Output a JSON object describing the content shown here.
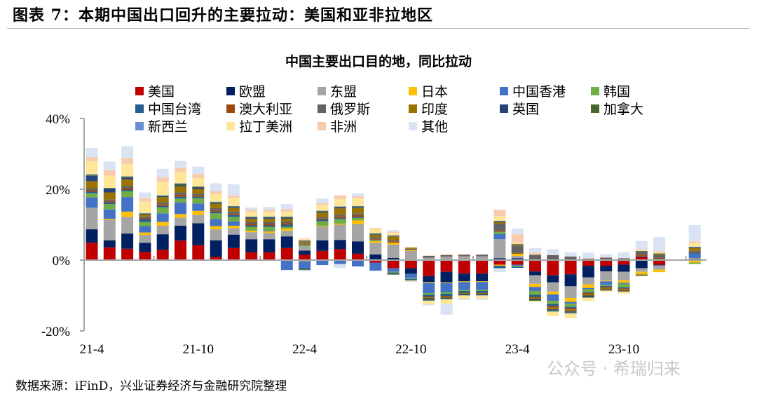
{
  "figure_title": "图表 7：本期中国出口回升的主要拉动：美国和亚非拉地区",
  "source_note": "数据来源：iFinD，兴业证券经济与金融研究院整理",
  "watermark": "公众号 · 希瑞归来",
  "chart_data": {
    "type": "bar",
    "stacked": true,
    "title": "中国主要出口目的地，同比拉动",
    "xlabel": "",
    "ylabel": "",
    "ylim": [
      -20,
      40
    ],
    "yticks": [
      "-20%",
      "0%",
      "20%",
      "40%"
    ],
    "ytick_values": [
      -20,
      0,
      20,
      40
    ],
    "xtick_labels": [
      "21-4",
      "21-10",
      "22-4",
      "22-10",
      "23-4",
      "23-10"
    ],
    "grid": false,
    "legend_position": "top",
    "categories": [
      "21-4",
      "21-5",
      "21-6",
      "21-7",
      "21-8",
      "21-9",
      "21-10",
      "21-11",
      "21-12",
      "22-1",
      "22-2",
      "22-3",
      "22-4",
      "22-5",
      "22-6",
      "22-7",
      "22-8",
      "22-9",
      "22-10",
      "22-11",
      "22-12",
      "23-1",
      "23-2",
      "23-3",
      "23-4",
      "23-5",
      "23-6",
      "23-7",
      "23-8",
      "23-9",
      "23-10",
      "23-11",
      "23-12",
      "24-2"
    ],
    "series": [
      {
        "name": "美国",
        "color": "#C00000"
      },
      {
        "name": "欧盟",
        "color": "#002060"
      },
      {
        "name": "东盟",
        "color": "#A5A5A5"
      },
      {
        "name": "日本",
        "color": "#FFC000"
      },
      {
        "name": "中国香港",
        "color": "#4472C4"
      },
      {
        "name": "韩国",
        "color": "#70AD47"
      },
      {
        "name": "中国台湾",
        "color": "#255E91"
      },
      {
        "name": "澳大利亚",
        "color": "#9E480E"
      },
      {
        "name": "俄罗斯",
        "color": "#636363"
      },
      {
        "name": "印度",
        "color": "#997300"
      },
      {
        "name": "英国",
        "color": "#264478"
      },
      {
        "name": "加拿大",
        "color": "#43682B"
      },
      {
        "name": "新西兰",
        "color": "#698ED0"
      },
      {
        "name": "拉丁美洲",
        "color": "#FFE699"
      },
      {
        "name": "非洲",
        "color": "#F8CBAD"
      },
      {
        "name": "其他",
        "color": "#DAE3F3"
      }
    ],
    "values_by_category": [
      [
        4.9,
        3.8,
        6.1,
        0,
        2.9,
        1.2,
        0.4,
        0.4,
        0.6,
        2.0,
        1.5,
        0.3,
        0.2,
        3.6,
        1.2,
        2.6
      ],
      [
        3.6,
        2.0,
        5.7,
        0.3,
        2.7,
        1.5,
        0.5,
        0.4,
        0.4,
        2.0,
        1.0,
        0.2,
        0.1,
        3.5,
        1.5,
        2.4
      ],
      [
        3.2,
        4.3,
        4.7,
        1.5,
        4.1,
        1.7,
        0.4,
        0.5,
        0.6,
        1.8,
        0.5,
        0.3,
        0.1,
        3.4,
        1.7,
        3.4
      ],
      [
        2.3,
        2.6,
        2.2,
        0.7,
        1.8,
        1.2,
        0.8,
        0.3,
        0.4,
        0.6,
        0.2,
        0.1,
        0.1,
        3.2,
        1.0,
        1.6
      ],
      [
        2.9,
        4.4,
        2.4,
        1.1,
        2.4,
        1.7,
        0.4,
        0.5,
        0.5,
        1.5,
        0.3,
        0.1,
        0.1,
        3.8,
        1.3,
        2.4
      ],
      [
        5.5,
        4.2,
        2.3,
        1.0,
        3.3,
        1.1,
        0.5,
        0.6,
        0.6,
        1.7,
        0.3,
        0.5,
        0.1,
        3.1,
        1.2,
        2.0
      ],
      [
        4.2,
        6.2,
        2.4,
        1.1,
        2.1,
        1.5,
        0.4,
        0.4,
        0.5,
        1.3,
        0.4,
        0.2,
        0.1,
        2.3,
        1.2,
        2.1
      ],
      [
        0.9,
        4.7,
        3.1,
        0.9,
        2.0,
        1.6,
        0.5,
        0.4,
        0.6,
        1.2,
        0.3,
        0.2,
        0.1,
        2.1,
        0.9,
        2.2
      ],
      [
        3.4,
        3.8,
        1.8,
        0.7,
        1.2,
        1.3,
        0.5,
        0.4,
        0.6,
        1.0,
        0.3,
        0.2,
        0.1,
        2.3,
        0.6,
        3.2
      ],
      [
        2.2,
        3.7,
        2.0,
        0.4,
        0,
        1.1,
        0.4,
        0.4,
        0.5,
        1.0,
        0.3,
        0.2,
        0.1,
        1.4,
        0.5,
        0.7
      ],
      [
        2.2,
        3.7,
        1.8,
        0.4,
        0.2,
        1.1,
        0.4,
        0.4,
        0.5,
        1.0,
        0.3,
        0.2,
        0.1,
        1.4,
        0.5,
        0.8
      ],
      [
        3.4,
        3.3,
        1.6,
        0.6,
        -2.8,
        0.5,
        0.6,
        0.4,
        0.5,
        0.8,
        0.3,
        0.2,
        0.1,
        1.4,
        0.7,
        1.4
      ],
      [
        1.5,
        1.2,
        1.2,
        -0.3,
        -2.0,
        0.3,
        -0.3,
        0.2,
        0.3,
        0.6,
        0.2,
        -0.2,
        0.1,
        0.3,
        0.2,
        -0.4
      ],
      [
        2.6,
        3.0,
        3.9,
        0.2,
        -1.4,
        1.3,
        0.4,
        0.3,
        0.4,
        1.3,
        0.3,
        0.2,
        0.1,
        1.6,
        0.5,
        1.3
      ],
      [
        3.1,
        2.6,
        4.3,
        0.3,
        -1.1,
        1.3,
        0.3,
        0.5,
        0.4,
        1.8,
        0.3,
        0.2,
        0.1,
        2.0,
        1.1,
        -1.1
      ],
      [
        1.8,
        3.5,
        4.9,
        1.0,
        -1.8,
        0.7,
        0.3,
        0.5,
        0.5,
        1.5,
        0.3,
        0.2,
        0.1,
        2.2,
        0.5,
        0.9
      ],
      [
        -0.7,
        1.6,
        3.3,
        0.5,
        -2.3,
        0.2,
        0.2,
        0.3,
        0.4,
        0.7,
        0.2,
        0.1,
        0.1,
        1.2,
        0.3,
        0
      ],
      [
        -2.3,
        0.6,
        3.8,
        0.5,
        -1.0,
        -0.2,
        -0.3,
        0.4,
        0.4,
        1.0,
        0.2,
        -0.3,
        0.1,
        0.7,
        0.3,
        0.5
      ],
      [
        -2.3,
        -1.6,
        2.6,
        0.2,
        -1.2,
        -0.2,
        -0.3,
        0.1,
        0.3,
        0.3,
        -0.1,
        -0.1,
        0,
        -0.2,
        0.2,
        -0.2
      ],
      [
        -4.5,
        -1.7,
        0.7,
        -0.2,
        -2.9,
        -0.5,
        -0.5,
        -0.2,
        0.5,
        -0.3,
        -0.3,
        -0.3,
        -0.1,
        -1.0,
        0.1,
        -0.3
      ],
      [
        -3.3,
        -3.0,
        1.0,
        -0.2,
        -2.6,
        -0.4,
        -0.6,
        -0.2,
        0.4,
        -0.3,
        -0.2,
        -0.2,
        -0.1,
        -1.3,
        0.3,
        -3.0
      ],
      [
        -3.8,
        -2.2,
        1.1,
        -0.2,
        -2.2,
        -0.3,
        -0.5,
        -0.1,
        0.4,
        -0.2,
        -0.2,
        -0.2,
        -0.1,
        -0.9,
        0.2,
        -0.4
      ],
      [
        -3.8,
        -2.2,
        1.1,
        -0.2,
        -2.2,
        -0.3,
        -0.5,
        -0.1,
        0.4,
        -0.2,
        -0.2,
        -0.2,
        -0.1,
        -0.9,
        0.2,
        -0.4
      ],
      [
        -1.3,
        0.5,
        5.4,
        -0.3,
        1.5,
        0.6,
        -0.7,
        0.3,
        2.0,
        0.4,
        0.2,
        0.1,
        0.1,
        1.3,
        1.8,
        -1.1
      ],
      [
        -1.3,
        0.5,
        0.7,
        0.6,
        -0.3,
        -0.3,
        -0.3,
        0.2,
        2.1,
        0.3,
        0.1,
        0.1,
        0,
        0.4,
        2.3,
        1.6
      ],
      [
        -3.2,
        -1.1,
        -2.4,
        -0.9,
        -1.1,
        -1.1,
        -0.6,
        -0.2,
        1.5,
        -0.4,
        -0.3,
        -0.2,
        0,
        -0.3,
        0.6,
        1.3
      ],
      [
        -4.3,
        -2.0,
        -2.6,
        -0.8,
        -1.8,
        -0.9,
        -0.6,
        -0.4,
        1.4,
        -0.5,
        -0.3,
        -0.3,
        -0.1,
        -1.2,
        0.1,
        1.6
      ],
      [
        -4.0,
        -3.4,
        -3.3,
        -1.1,
        -0.5,
        -0.9,
        -0.4,
        -0.4,
        1.0,
        -0.5,
        -0.3,
        -0.2,
        -0.1,
        -1.3,
        0.1,
        1.1
      ],
      [
        -1.6,
        -3.3,
        -2.0,
        -1.0,
        -0.3,
        -0.9,
        -0.2,
        -0.2,
        0.4,
        -0.5,
        -0.4,
        -0.2,
        0,
        -0.9,
        0.1,
        1.6
      ],
      [
        -1.6,
        -1.6,
        -2.6,
        -0.2,
        -1.0,
        -0.3,
        -0.3,
        -0.3,
        0.7,
        -0.4,
        -0.2,
        -0.1,
        0,
        -0.3,
        0.1,
        0.9
      ],
      [
        -1.3,
        -2.0,
        -2.4,
        -0.7,
        -0.3,
        -1.0,
        -0.3,
        -0.2,
        0.5,
        -0.4,
        -0.2,
        -0.1,
        0,
        -0.6,
        0.1,
        1.6
      ],
      [
        1.0,
        -2.3,
        -1.0,
        -0.6,
        0.1,
        -0.2,
        0.1,
        0.3,
        0.9,
        -0.4,
        0.1,
        0.1,
        0,
        0.3,
        0.2,
        2.3
      ],
      [
        -1.3,
        -0.2,
        -1.2,
        -0.7,
        0.2,
        0.1,
        0.1,
        0.2,
        0.8,
        0.3,
        0.1,
        0.1,
        0,
        0.3,
        0.3,
        4.0
      ],
      [
        0.2,
        0.1,
        0.3,
        -0.7,
        1.2,
        -0.4,
        0.3,
        0.2,
        0.3,
        0.8,
        0.2,
        0.1,
        0.1,
        1.0,
        0.5,
        4.6
      ]
    ]
  }
}
